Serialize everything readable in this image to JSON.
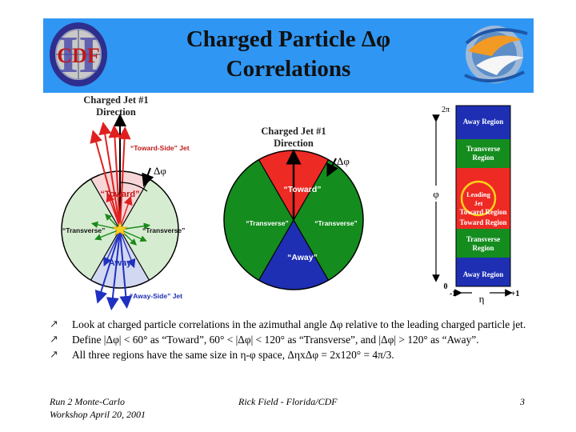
{
  "slide": {
    "title_line1": "Charged Particle Δφ",
    "title_line2": "Correlations",
    "left_logo_text": "CDF",
    "left_logo_numeral": "II"
  },
  "left_diagram": {
    "direction_label_line1": "Charged Jet #1",
    "direction_label_line2": "Direction",
    "toward_side_jet": "“Toward-Side” Jet",
    "delta_phi": "Δφ",
    "toward": "“Toward”",
    "transverse_left": "“Transverse”",
    "transverse_right": "“Transverse”",
    "away": "“Away”",
    "away_side_jet": "“Away-Side” Jet"
  },
  "middle_diagram": {
    "direction_label_line1": "Charged Jet #1",
    "direction_label_line2": "Direction",
    "delta_phi": "Δφ",
    "toward": "“Toward”",
    "transverse_left": "“Transverse”",
    "transverse_right": "“Transverse”",
    "away": "“Away”"
  },
  "right_diagram": {
    "top_label": "2π",
    "phi_label": "φ",
    "bottom_label": "0",
    "x_min": "-1",
    "x_max": "+1",
    "eta_label": "η",
    "regions": {
      "away_top": "Away Region",
      "transverse_top_1": "Transverse",
      "transverse_top_2": "Region",
      "leading_jet_1": "Leading",
      "leading_jet_2": "Jet",
      "toward_top": "Toward Region",
      "toward_bottom": "Toward Region",
      "transverse_bottom_1": "Transverse",
      "transverse_bottom_2": "Region",
      "away_bottom": "Away Region"
    }
  },
  "bullets": [
    "Look at charged particle correlations in the azimuthal angle Δφ relative to the leading charged particle jet.",
    "Define |Δφ| < 60° as “Toward”, 60° < |Δφ| < 120° as “Transverse”, and |Δφ| > 120° as “Away”.",
    "All three regions have the same size in η-φ space, ΔηxΔφ = 2x120° = 4π/3."
  ],
  "bullet_mark": "↗",
  "footer": {
    "left_line1": "Run 2 Monte-Carlo",
    "left_line2": "Workshop April 20, 2001",
    "center": "Rick Field - Florida/CDF",
    "page_number": "3"
  },
  "colors": {
    "header_bg": "#2f96f3",
    "toward": "#ee2a24",
    "transverse": "#148c1e",
    "away": "#1e2fb4"
  }
}
